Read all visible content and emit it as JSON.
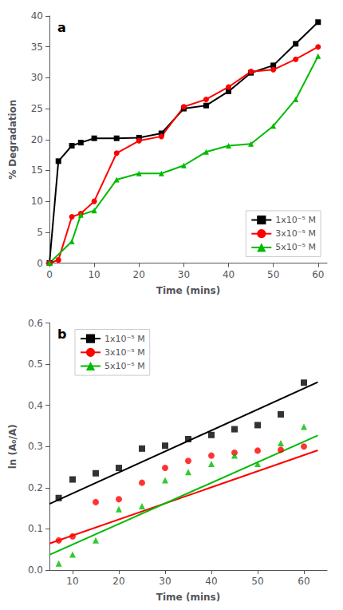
{
  "chart_data": [
    {
      "type": "line",
      "annotation": "a",
      "xlabel": "Time (mins)",
      "ylabel": "% Degradation",
      "xlim": [
        0,
        62
      ],
      "ylim": [
        0,
        40
      ],
      "xticks": [
        0,
        10,
        20,
        30,
        40,
        50,
        60
      ],
      "yticks": [
        0,
        5,
        10,
        15,
        20,
        25,
        30,
        35,
        40
      ],
      "grid": false,
      "legend": "lower right",
      "series": [
        {
          "name": "1x10⁻⁵ M",
          "color": "#000000",
          "marker": "square",
          "x": [
            0,
            2,
            5,
            7,
            10,
            15,
            20,
            25,
            30,
            35,
            40,
            45,
            50,
            55,
            60
          ],
          "values": [
            0,
            16.5,
            19.0,
            19.5,
            20.2,
            20.2,
            20.3,
            21.0,
            25.0,
            25.5,
            27.8,
            30.8,
            32.0,
            35.5,
            39.0
          ]
        },
        {
          "name": "3x10⁻⁵ M",
          "color": "#ff0000",
          "marker": "circle",
          "x": [
            0,
            2,
            5,
            7,
            10,
            15,
            20,
            25,
            30,
            35,
            40,
            45,
            50,
            55,
            60
          ],
          "values": [
            0,
            0.5,
            7.5,
            8.0,
            10.0,
            17.8,
            19.8,
            20.5,
            25.3,
            26.5,
            28.5,
            31.0,
            31.3,
            33.0,
            35.0
          ]
        },
        {
          "name": "5x10⁻⁵ M",
          "color": "#00bb00",
          "marker": "triangle",
          "x": [
            0,
            5,
            7,
            10,
            15,
            20,
            25,
            30,
            35,
            40,
            45,
            50,
            55,
            60
          ],
          "values": [
            0,
            3.5,
            7.8,
            8.5,
            13.5,
            14.5,
            14.5,
            15.8,
            18.0,
            19.0,
            19.3,
            22.2,
            26.5,
            33.5
          ]
        }
      ]
    },
    {
      "type": "scatter",
      "annotation": "b",
      "xlabel": "Time (mins)",
      "ylabel": "ln (A₀/A)",
      "xlim": [
        5,
        65
      ],
      "ylim": [
        0.0,
        0.6
      ],
      "xticks": [
        10,
        20,
        30,
        40,
        50,
        60
      ],
      "yticks": [
        {
          "value": 0.0,
          "label": "0.0"
        },
        0.1,
        0.2,
        0.3,
        0.4,
        0.5,
        0.6
      ],
      "grid": false,
      "legend": "upper left",
      "series": [
        {
          "name": "1x10⁻⁵ M",
          "color": "#000000",
          "marker": "square",
          "x": [
            7,
            10,
            15,
            20,
            25,
            30,
            35,
            40,
            45,
            50,
            55,
            60
          ],
          "values": [
            0.175,
            0.22,
            0.235,
            0.248,
            0.295,
            0.302,
            0.318,
            0.328,
            0.342,
            0.352,
            0.378,
            0.455
          ],
          "fit_x": [
            5,
            63
          ],
          "fit_values": [
            0.1605,
            0.4563
          ]
        },
        {
          "name": "3x10⁻⁵ M",
          "color": "#ff0000",
          "marker": "circle",
          "x": [
            7,
            10,
            15,
            20,
            25,
            30,
            35,
            40,
            45,
            50,
            55,
            60
          ],
          "values": [
            0.072,
            0.082,
            0.165,
            0.172,
            0.212,
            0.248,
            0.265,
            0.278,
            0.285,
            0.29,
            0.292,
            0.3
          ],
          "fit_x": [
            5,
            63
          ],
          "fit_values": [
            0.0645,
            0.2907
          ]
        },
        {
          "name": "5x10⁻⁵ M",
          "color": "#00bb00",
          "marker": "triangle",
          "x": [
            7,
            10,
            15,
            20,
            25,
            30,
            35,
            40,
            45,
            50,
            55,
            60
          ],
          "values": [
            0.016,
            0.038,
            0.072,
            0.148,
            0.155,
            0.218,
            0.238,
            0.258,
            0.278,
            0.258,
            0.308,
            0.348
          ],
          "fit_x": [
            5,
            63
          ],
          "fit_values": [
            0.037,
            0.327
          ]
        }
      ]
    }
  ]
}
